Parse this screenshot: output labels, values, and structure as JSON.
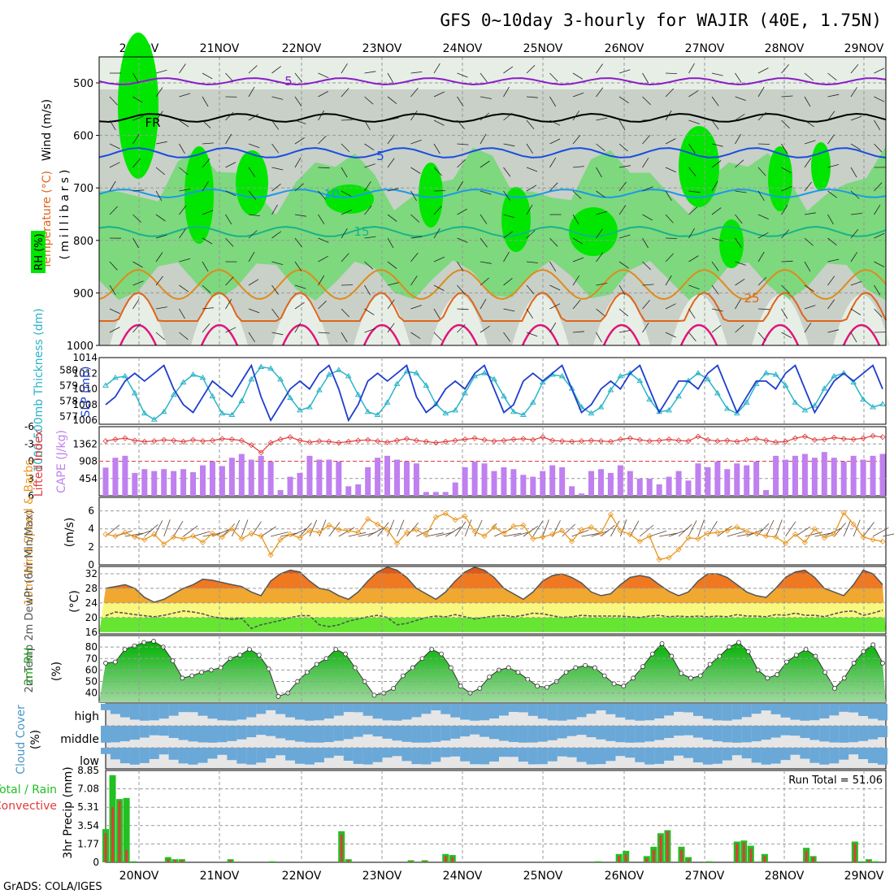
{
  "header": {
    "title": "GFS 0~10day 3-hourly for WAJIR (40E, 1.75N)",
    "credit": "GrADS: COLA/IGES"
  },
  "colors": {
    "rh_light": "#c8d0c8",
    "rh_lighter": "#e6eee6",
    "rh_mid": "#7ed87e",
    "rh_strong": "#00e600",
    "temp_5_high": "#8a1cc8",
    "temp_fr": "#000000",
    "temp_5_mid": "#1a4de0",
    "temp_10": "#1a9be6",
    "temp_15": "#17b38a",
    "temp_20": "#e08a1a",
    "temp_25": "#e0641a",
    "temp_30": "#e0147a",
    "slp": "#1f3fcc",
    "thickness": "#2ab4c8",
    "lifted_index": "#e03c3c",
    "cape": "#c080f0",
    "wind": "#e8961e",
    "dewpoint": "#555555",
    "rh_curve": "#00c000",
    "cloud": "#6aa8d8",
    "cloud_gap": "#d8d8d8",
    "precip_total": "#22c022",
    "precip_conv": "#e03c3c"
  },
  "days": [
    "20NOV",
    "21NOV",
    "22NOV",
    "23NOV",
    "24NOV",
    "25NOV",
    "26NOV",
    "27NOV",
    "28NOV",
    "29NOV"
  ],
  "panels": {
    "upper": {
      "label_wind": "Wind (m/s)",
      "label_temp": "Temperature (°C)",
      "label_rh": "RH (%)",
      "label_pres": "(millibars)",
      "yticks": [
        "500",
        "600",
        "700",
        "800",
        "900",
        "1000"
      ],
      "contour_labels": [
        "5",
        "FR",
        "5",
        "10",
        "15",
        "25"
      ]
    },
    "slp": {
      "label_thk": "1000-500mb Thickness (dm)",
      "label_slp": "SLP (mb)",
      "left_ticks": [
        "580",
        "579",
        "578",
        "577"
      ],
      "right_ticks": [
        "1014",
        "1012",
        "1010",
        "1008",
        "1006"
      ]
    },
    "cape": {
      "label_li": "Lifted Index",
      "label_cape": "CAPE (J/kg)",
      "left_ticks": [
        "-6",
        "-3",
        "0",
        "3",
        "6"
      ],
      "right_ticks": [
        "1362",
        "908",
        "454"
      ]
    },
    "wind": {
      "label": "10m Wind Speed & Barbs",
      "unit": "(m/s)",
      "ticks": [
        "6",
        "4",
        "2",
        "0"
      ]
    },
    "temp": {
      "label": "2m Temp 2m DewPt (6hr Min/Max)",
      "unit": "(°C)",
      "ticks": [
        "32",
        "28",
        "24",
        "20",
        "16"
      ]
    },
    "rh": {
      "label": "2m RH",
      "unit": "(%)",
      "ticks": [
        "80",
        "70",
        "60",
        "50",
        "40"
      ]
    },
    "cloud": {
      "label": "Cloud Cover",
      "unit": "(%)",
      "levels": [
        "high",
        "middle",
        "low"
      ]
    },
    "precip": {
      "label_total": "Total / Rain",
      "label_conv": "Convective",
      "label_axis": "3hr Precip (mm)",
      "ticks": [
        "8.85",
        "7.08",
        "5.31",
        "3.54",
        "1.77",
        "0"
      ],
      "run_total": "Run Total = 51.06"
    }
  },
  "chart_data": [
    {
      "type": "line",
      "title": "1000-500mb Thickness (dm) / SLP (mb)",
      "x_unit": "3-hourly steps from 19NOV 12Z",
      "series": [
        {
          "name": "SLP (mb)",
          "values": [
            1008,
            1009,
            1011,
            1012,
            1011,
            1012,
            1013,
            1010,
            1008,
            1007,
            1009,
            1011,
            1010,
            1009,
            1011,
            1013,
            1009,
            1006,
            1008,
            1010,
            1011,
            1010,
            1012,
            1013,
            1010,
            1006,
            1008,
            1011,
            1012,
            1011,
            1012,
            1013,
            1009,
            1007,
            1008,
            1010,
            1011,
            1010,
            1012,
            1013,
            1010,
            1007,
            1008,
            1011,
            1012,
            1011,
            1012,
            1013,
            1010,
            1007,
            1008,
            1010,
            1011,
            1010,
            1012,
            1013,
            1010,
            1007,
            1009,
            1011,
            1011,
            1010,
            1012,
            1013,
            1010,
            1007,
            1009,
            1011,
            1011,
            1010,
            1012,
            1013,
            1010,
            1007,
            1009,
            1011,
            1012,
            1011,
            1012,
            1013,
            1010
          ]
        },
        {
          "name": "1000-500mb Thickness (dm)",
          "values": [
            579,
            579.5,
            579.6,
            578.5,
            577.2,
            576.8,
            577.3,
            578.4,
            579.2,
            579.7,
            579.5,
            578.3,
            577.2,
            577.1,
            578,
            579.4,
            580.2,
            580.1,
            579.4,
            578.2,
            577.4,
            577.6,
            578.7,
            579.7,
            580,
            579.6,
            578.4,
            577.3,
            577.1,
            577.9,
            579.1,
            579.9,
            579.8,
            579,
            577.8,
            577.2,
            577.4,
            578.5,
            579.6,
            579.8,
            579.4,
            578.3,
            577.3,
            577.1,
            577.9,
            579.2,
            579.7,
            579.6,
            578.8,
            577.6,
            577.2,
            577.6,
            578.7,
            579.6,
            579.8,
            579.3,
            578.1,
            577.3,
            577.4,
            578.3,
            579.3,
            579.8,
            579.4,
            578.5,
            577.5,
            577.2,
            577.9,
            579.1,
            579.8,
            579.7,
            579,
            577.9,
            577.4,
            577.7,
            578.8,
            579.6,
            579.8,
            579.2,
            578.1,
            577.6,
            577.8
          ]
        }
      ],
      "ylim_left": [
        576.5,
        580.8
      ],
      "ylim_right": [
        1005.5,
        1014
      ]
    },
    {
      "type": "bar",
      "title": "CAPE (J/kg) / Lifted Index",
      "series": [
        {
          "name": "CAPE (J/kg)",
          "values": [
            740,
            1000,
            1050,
            600,
            700,
            650,
            700,
            650,
            700,
            620,
            800,
            900,
            780,
            1000,
            1100,
            950,
            1050,
            900,
            150,
            500,
            600,
            1050,
            950,
            950,
            900,
            250,
            300,
            750,
            1000,
            1050,
            950,
            900,
            850,
            100,
            100,
            100,
            350,
            750,
            900,
            850,
            650,
            750,
            700,
            550,
            500,
            650,
            800,
            750,
            250,
            60,
            650,
            700,
            600,
            800,
            650,
            450,
            450,
            300,
            500,
            650,
            400,
            850,
            750,
            900,
            700,
            850,
            800,
            900,
            150,
            1050,
            950,
            1050,
            1100,
            1000,
            1150,
            1000,
            900,
            1050,
            950,
            1050,
            1100
          ]
        },
        {
          "name": "Lifted Index",
          "values": [
            -3.5,
            -3.8,
            -4,
            -3.6,
            -3.4,
            -3.5,
            -3.7,
            -3.6,
            -3.4,
            -3.7,
            -3.5,
            -3.6,
            -3.9,
            -3.8,
            -3.6,
            -2.8,
            -1.5,
            -3.2,
            -3.8,
            -4.2,
            -3.6,
            -3.3,
            -3.5,
            -3.4,
            -3.2,
            -3.4,
            -3.6,
            -3.7,
            -3.5,
            -3.3,
            -3.6,
            -3.9,
            -3.6,
            -3.4,
            -3.2,
            -3.4,
            -3.6,
            -3.8,
            -4,
            -3.7,
            -3.5,
            -3.6,
            -3.8,
            -3.9,
            -3.7,
            -4.2,
            -3.6,
            -3.5,
            -3.4,
            -3.5,
            -3.6,
            -3.5,
            -3.4,
            -3.8,
            -4,
            -3.7,
            -3.5,
            -3.6,
            -3.8,
            -3.6,
            -3.5,
            -4.3,
            -3.7,
            -3.5,
            -3.6,
            -3.4,
            -3.7,
            -3.9,
            -3.6,
            -3.3,
            -3.4,
            -4,
            -4.3,
            -3.7,
            -3.8,
            -4.1,
            -3.9,
            -3.8,
            -4,
            -4.4,
            -4.2
          ]
        }
      ],
      "ylim_left": [
        -6,
        6
      ],
      "ylim_right": [
        0,
        1816
      ]
    },
    {
      "type": "line",
      "title": "10m Wind Speed & Barbs (m/s)",
      "series": [
        {
          "name": "10m Wind Speed (m/s)",
          "values": [
            3.4,
            3.2,
            3.6,
            3.1,
            2.8,
            3.4,
            2.3,
            3.1,
            2.9,
            3.2,
            2.5,
            3.5,
            3.1,
            4,
            2.9,
            3.5,
            3.2,
            1.1,
            2.8,
            3.4,
            3,
            3.8,
            3.6,
            4.4,
            3.9,
            3.8,
            3.6,
            5.1,
            4.5,
            3.9,
            2.4,
            3.6,
            3.9,
            3.3,
            5.3,
            5.7,
            5,
            5.4,
            3.7,
            3.2,
            4.2,
            3.5,
            4.3,
            4.4,
            2.9,
            3.1,
            3.4,
            3.8,
            2.6,
            3.9,
            4.2,
            3.5,
            5.6,
            3.8,
            3.4,
            2.6,
            3.2,
            0.6,
            0.8,
            1.7,
            3,
            2.9,
            3.5,
            3.6,
            3.8,
            4.2,
            3.7,
            3.5,
            3.2,
            3.1,
            2.4,
            3.4,
            2.5,
            4,
            3,
            3.4,
            5.8,
            4.5,
            3.1,
            2.8,
            2.6
          ]
        }
      ],
      "ylim": [
        0,
        7.5
      ]
    },
    {
      "type": "area",
      "title": "2m Temp / 2m DewPt (°C)",
      "series": [
        {
          "name": "2m Temp",
          "values": [
            28,
            28.5,
            29,
            28,
            25.5,
            24.2,
            25,
            26.5,
            28,
            29,
            30.5,
            30.2,
            29.6,
            29,
            28.5,
            27,
            26,
            30,
            32,
            33,
            32.5,
            30,
            28,
            27.5,
            26,
            25,
            27,
            30,
            32.5,
            33.8,
            33,
            31,
            28,
            26.5,
            25,
            27,
            30,
            32.5,
            33.8,
            33,
            31,
            28,
            26.5,
            25,
            27,
            30,
            31.5,
            32,
            31,
            29.5,
            27,
            26,
            26.5,
            29,
            31,
            31.5,
            31,
            29,
            27.2,
            26,
            27,
            30,
            32,
            32,
            31,
            29,
            27,
            26,
            25.5,
            28,
            31,
            32.5,
            33,
            31,
            28,
            27,
            26,
            29,
            33,
            32,
            29
          ]
        },
        {
          "name": "2m DewPt",
          "values": [
            20.5,
            21.5,
            21.2,
            20.8,
            20.5,
            20.2,
            20.6,
            21.2,
            21.8,
            21.5,
            21,
            20.2,
            19.8,
            19.5,
            19.8,
            17,
            18,
            18.6,
            19.2,
            20,
            20.5,
            20.5,
            18,
            17.5,
            18,
            19,
            19.6,
            20.2,
            20.6,
            20,
            18,
            18.4,
            19.2,
            20,
            20.4,
            20.2,
            20.8,
            20.2,
            19.6,
            20,
            20.4,
            20.6,
            20.2,
            20.6,
            21.2,
            21,
            20.5,
            20,
            20.2,
            20.6,
            20.4,
            20.4,
            20.4,
            20.4,
            20.2,
            20,
            20.4,
            20.6,
            20.2,
            20.4,
            20.2,
            20.4,
            20.2,
            20.4,
            20.2,
            20.8,
            20.4,
            20.4,
            20.2,
            20.8,
            20.6,
            21.2,
            20.6,
            20.6,
            20.2,
            21,
            21.6,
            21.8,
            20.6,
            21.2,
            22
          ]
        }
      ],
      "ylim": [
        15.5,
        34
      ]
    },
    {
      "type": "area",
      "title": "2m RH (%)",
      "series": [
        {
          "name": "2m RH",
          "values": [
            66,
            67,
            78,
            81,
            84,
            85,
            80,
            68,
            53,
            55,
            58,
            60,
            62,
            70,
            73,
            78,
            73,
            61,
            37,
            40,
            50,
            58,
            65,
            70,
            78,
            74,
            62,
            50,
            38,
            40,
            44,
            55,
            62,
            70,
            78,
            74,
            62,
            46,
            40,
            44,
            54,
            60,
            62,
            58,
            52,
            46,
            45,
            50,
            58,
            62,
            64,
            62,
            55,
            48,
            46,
            53,
            63,
            74,
            83,
            72,
            57,
            53,
            55,
            65,
            72,
            80,
            84,
            76,
            60,
            53,
            56,
            67,
            73,
            78,
            72,
            58,
            44,
            53,
            66,
            76,
            82,
            66
          ]
        }
      ],
      "ylim": [
        32,
        90
      ]
    },
    {
      "type": "bar",
      "title": "3hr Precip (mm)",
      "run_total": 51.06,
      "series": [
        {
          "name": "Total / Rain",
          "values": [
            3.2,
            8.4,
            6.1,
            6.2,
            0.1,
            0,
            0,
            0,
            0,
            0.5,
            0.3,
            0.3,
            0,
            0,
            0,
            0,
            0,
            0,
            0.3,
            0,
            0,
            0,
            0,
            0,
            0.1,
            0,
            0,
            0,
            0,
            0,
            0,
            0,
            0,
            0,
            3,
            0.3,
            0,
            0,
            0,
            0,
            0,
            0,
            0,
            0,
            0.2,
            0,
            0.2,
            0,
            0,
            0.8,
            0.7,
            0,
            0,
            0,
            0,
            0,
            0,
            0,
            0,
            0,
            0,
            0,
            0,
            0,
            0,
            0,
            0,
            0,
            0,
            0,
            0,
            0.1,
            0,
            0,
            0.8,
            1.1,
            0,
            0,
            0.6,
            1.5,
            2.8,
            3.1,
            0,
            1.5,
            0.5,
            0,
            0,
            0.1,
            0,
            0,
            0,
            2,
            2.1,
            1.6,
            0,
            0.8,
            0,
            0,
            0,
            0,
            0,
            1.4,
            0.6,
            0,
            0,
            0,
            0,
            0,
            2,
            0.1,
            0.3,
            0.1,
            0
          ]
        },
        {
          "name": "Convective",
          "values": [
            2.8,
            5.3,
            5.9,
            1.2,
            0,
            0,
            0,
            0,
            0,
            0.3,
            0.2,
            0.2,
            0,
            0,
            0,
            0,
            0,
            0,
            0.2,
            0,
            0,
            0,
            0,
            0,
            0,
            0,
            0,
            0,
            0,
            0,
            0,
            0,
            0,
            0,
            2.7,
            0.2,
            0,
            0,
            0,
            0,
            0,
            0,
            0,
            0,
            0.1,
            0,
            0.1,
            0,
            0,
            0.6,
            0.5,
            0,
            0,
            0,
            0,
            0,
            0,
            0,
            0,
            0,
            0,
            0,
            0,
            0,
            0,
            0,
            0,
            0,
            0,
            0,
            0,
            0,
            0,
            0,
            0.6,
            0.8,
            0,
            0,
            0.4,
            1.2,
            2.6,
            3,
            0,
            1.2,
            0.3,
            0,
            0,
            0,
            0,
            0,
            0,
            1.8,
            1.9,
            1.3,
            0,
            0.6,
            0,
            0,
            0,
            0,
            0,
            1.1,
            0.5,
            0,
            0,
            0,
            0,
            0,
            1.8,
            0,
            0.2,
            0,
            0
          ]
        }
      ],
      "ylim": [
        0,
        8.85
      ]
    }
  ]
}
